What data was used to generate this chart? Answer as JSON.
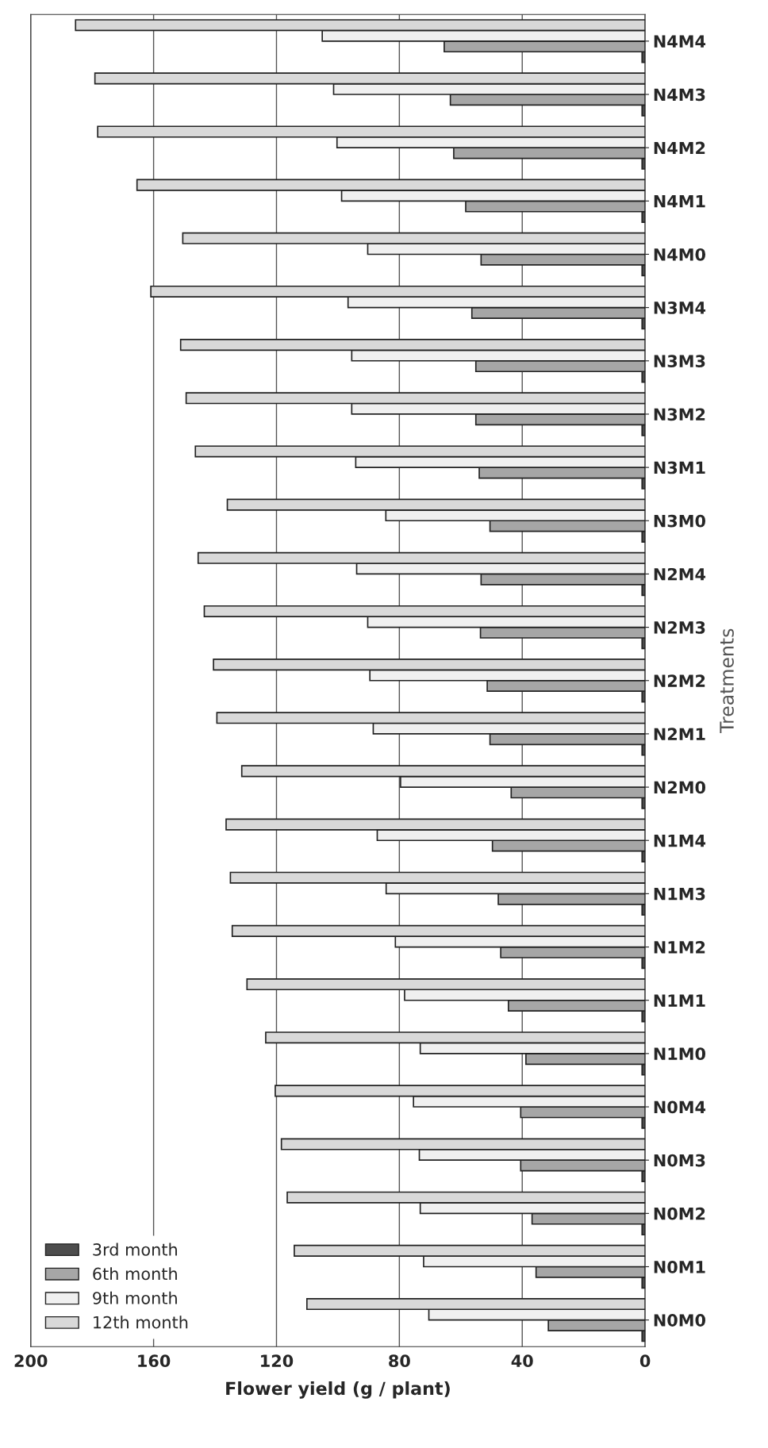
{
  "chart_data": {
    "type": "bar",
    "orientation": "horizontal",
    "xlabel": "Flower yield (g / plant)",
    "ylabel": "Treatments",
    "categories": [
      "N4M4",
      "N4M3",
      "N4M2",
      "N4M1",
      "N4M0",
      "N3M4",
      "N3M3",
      "N3M2",
      "N3M1",
      "N3M0",
      "N2M4",
      "N2M3",
      "N2M2",
      "N2M1",
      "N2M0",
      "N1M4",
      "N1M3",
      "N1M2",
      "N1M1",
      "N1M0",
      "N0M4",
      "N0M3",
      "N0M2",
      "N0M1",
      "N0M0"
    ],
    "series": [
      {
        "name": "3rd month",
        "color": "#4d4d4d",
        "values": [
          1,
          1,
          1,
          1,
          1,
          1,
          1,
          1,
          1,
          1,
          1,
          1,
          1,
          1,
          1,
          1,
          1,
          1,
          1,
          1,
          1,
          1,
          1,
          1,
          1
        ]
      },
      {
        "name": "6th month",
        "color": "#a6a6a6",
        "values": [
          65.4,
          63.4,
          62.3,
          58.4,
          53.4,
          56.4,
          55.1,
          55.1,
          54.0,
          50.5,
          53.4,
          53.6,
          51.4,
          50.5,
          43.6,
          49.7,
          47.8,
          47.0,
          44.5,
          38.8,
          40.5,
          40.5,
          36.8,
          35.5,
          31.5
        ]
      },
      {
        "name": "9th month",
        "color": "#f0f0f0",
        "values": [
          105.1,
          101.4,
          100.3,
          98.8,
          90.3,
          96.7,
          95.5,
          95.5,
          94.2,
          84.4,
          93.9,
          90.3,
          89.6,
          88.5,
          79.6,
          87.2,
          84.3,
          81.3,
          78.3,
          73.2,
          75.4,
          73.5,
          73.2,
          72.1,
          70.4
        ]
      },
      {
        "name": "12th month",
        "color": "#d9d9d9",
        "values": [
          185.4,
          179.1,
          178.2,
          165.4,
          150.5,
          160.9,
          151.2,
          149.4,
          146.4,
          136.0,
          145.5,
          143.5,
          140.5,
          139.4,
          131.3,
          136.4,
          135.0,
          134.4,
          129.6,
          123.5,
          120.4,
          118.4,
          116.5,
          114.2,
          110.1
        ]
      }
    ],
    "xlim": [
      200,
      0
    ],
    "xticks": [
      0,
      40,
      80,
      120,
      160,
      200
    ],
    "grid": "x",
    "legend": "bottom left"
  }
}
